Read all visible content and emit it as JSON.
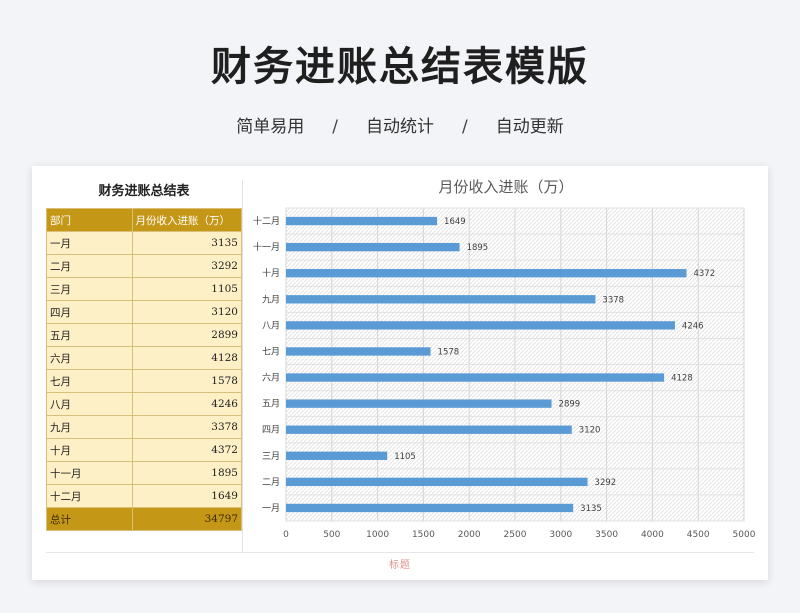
{
  "page": {
    "title": "财务进账总结表模版",
    "subtitle": [
      "简单易用",
      "自动统计",
      "自动更新"
    ],
    "separator": "/"
  },
  "table": {
    "title": "财务进账总结表",
    "headers": [
      "部门",
      "月份收入进账（万）"
    ],
    "rows": [
      {
        "label": "一月",
        "value": "3135"
      },
      {
        "label": "二月",
        "value": "3292"
      },
      {
        "label": "三月",
        "value": "1105"
      },
      {
        "label": "四月",
        "value": "3120"
      },
      {
        "label": "五月",
        "value": "2899"
      },
      {
        "label": "六月",
        "value": "4128"
      },
      {
        "label": "七月",
        "value": "1578"
      },
      {
        "label": "八月",
        "value": "4246"
      },
      {
        "label": "九月",
        "value": "3378"
      },
      {
        "label": "十月",
        "value": "4372"
      },
      {
        "label": "十一月",
        "value": "1895"
      },
      {
        "label": "十二月",
        "value": "1649"
      }
    ],
    "total_label": "总计",
    "total_value": "34797"
  },
  "chart_data": {
    "type": "bar",
    "orientation": "horizontal",
    "title": "月份收入进账（万）",
    "categories": [
      "一月",
      "二月",
      "三月",
      "四月",
      "五月",
      "六月",
      "七月",
      "八月",
      "九月",
      "十月",
      "十一月",
      "十二月"
    ],
    "values": [
      3135,
      3292,
      1105,
      3120,
      2899,
      4128,
      1578,
      4246,
      3378,
      4372,
      1895,
      1649
    ],
    "xlim": [
      0,
      5000
    ],
    "xticks": [
      0,
      500,
      1000,
      1500,
      2000,
      2500,
      3000,
      3500,
      4000,
      4500,
      5000
    ],
    "grid": true,
    "data_labels": true,
    "bar_color": "#5b9bd5"
  },
  "footer": {
    "logo_text": "标题"
  }
}
